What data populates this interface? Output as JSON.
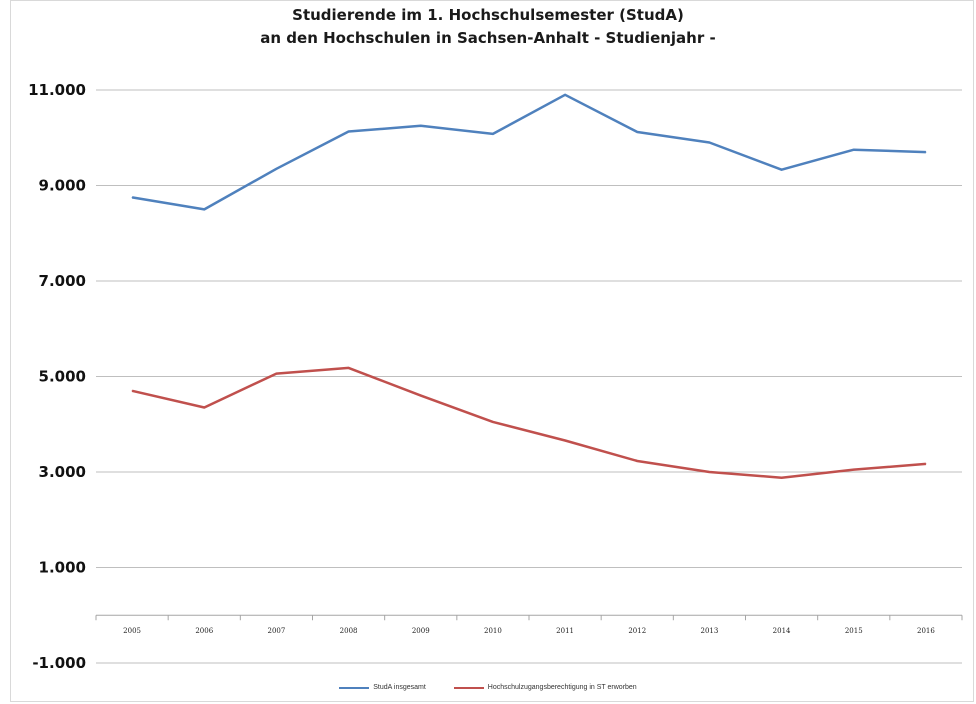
{
  "chart_data": {
    "type": "line",
    "title_line1": "Studierende im 1. Hochschulsemester (StudA)",
    "title_line2": "an den Hochschulen in Sachsen-Anhalt - Studienjahr -",
    "categories": [
      "2005",
      "2006",
      "2007",
      "2008",
      "2009",
      "2010",
      "2011",
      "2012",
      "2013",
      "2014",
      "2015",
      "2016"
    ],
    "y_ticks": [
      {
        "value": 11000,
        "label": "11.000"
      },
      {
        "value": 9000,
        "label": "9.000"
      },
      {
        "value": 7000,
        "label": "7.000"
      },
      {
        "value": 5000,
        "label": "5.000"
      },
      {
        "value": 3000,
        "label": "3.000"
      },
      {
        "value": 1000,
        "label": "1.000"
      },
      {
        "value": -1000,
        "label": "-1.000"
      }
    ],
    "ylim": [
      -1000,
      11000
    ],
    "grid": true,
    "legend_position": "bottom",
    "series": [
      {
        "name": "StudA insgesamt",
        "color": "#4f81bd",
        "values": [
          8750,
          8500,
          9350,
          10130,
          10250,
          10080,
          10900,
          10120,
          9900,
          9330,
          9750,
          9700
        ]
      },
      {
        "name": "Hochschulzugangsberechtigung in ST erworben",
        "color": "#c0504d",
        "values": [
          4700,
          4350,
          5060,
          5180,
          4600,
          4050,
          3660,
          3230,
          3000,
          2880,
          3050,
          3170
        ]
      }
    ]
  }
}
